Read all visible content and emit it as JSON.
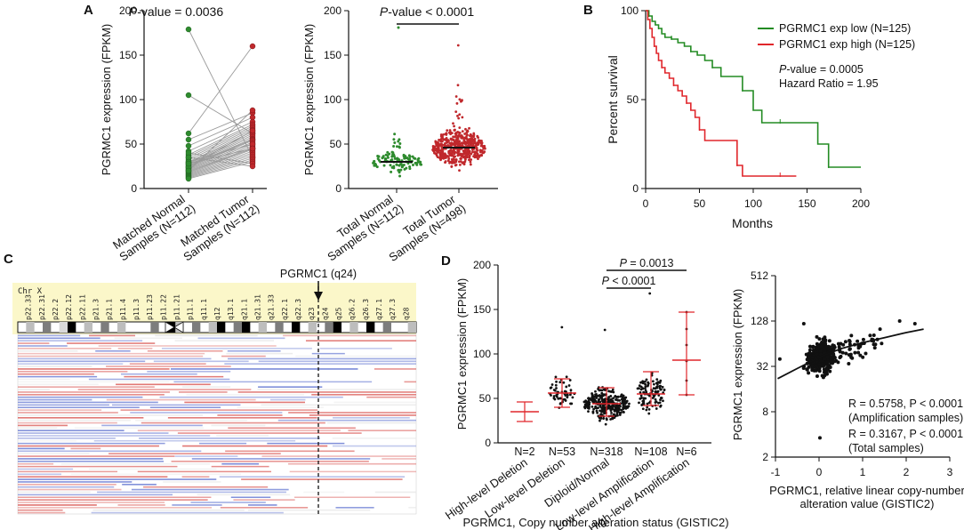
{
  "figure": {
    "panel_letters": [
      "A",
      "B",
      "C",
      "D"
    ]
  },
  "chart_data": [
    {
      "id": "A1",
      "type": "scatter",
      "subtype": "paired-dot-plot",
      "title_prefix": "P",
      "title_suffix": "-value = 0.0036",
      "ylabel": "PGRMC1 expression (FPKM)",
      "ylim": [
        0,
        200
      ],
      "yticks": [
        0,
        50,
        100,
        150,
        200
      ],
      "categories": [
        "Matched Normal Samples (N=112)",
        "Matched Tumor Samples (N=112)"
      ],
      "category_lines": [
        [
          "Matched Normal",
          "Samples (N=112)"
        ],
        [
          "Matched Tumor",
          "Samples (N=112)"
        ]
      ],
      "colors": [
        "#2e8b2e",
        "#c0282c"
      ],
      "pairs": [
        [
          179,
          35
        ],
        [
          105,
          62
        ],
        [
          62,
          160
        ],
        [
          55,
          85
        ],
        [
          48,
          80
        ],
        [
          42,
          75
        ],
        [
          38,
          72
        ],
        [
          36,
          70
        ],
        [
          34,
          68
        ],
        [
          32,
          66
        ],
        [
          30,
          64
        ],
        [
          29,
          62
        ],
        [
          28,
          60
        ],
        [
          27,
          58
        ],
        [
          26,
          56
        ],
        [
          25,
          55
        ],
        [
          24,
          54
        ],
        [
          23,
          52
        ],
        [
          22,
          50
        ],
        [
          21,
          48
        ],
        [
          20,
          46
        ],
        [
          19,
          45
        ],
        [
          18,
          44
        ],
        [
          17,
          42
        ],
        [
          16,
          40
        ],
        [
          15,
          38
        ],
        [
          14,
          36
        ],
        [
          13,
          34
        ],
        [
          12,
          32
        ],
        [
          11,
          30
        ],
        [
          40,
          28
        ],
        [
          35,
          25
        ],
        [
          30,
          50
        ],
        [
          24,
          65
        ],
        [
          20,
          88
        ],
        [
          28,
          45
        ]
      ]
    },
    {
      "id": "A2",
      "type": "scatter",
      "subtype": "dot-plot",
      "title_prefix": "P",
      "title_suffix": "-value < 0.0001",
      "ylabel": "PGRMC1 expression (FPKM)",
      "ylim": [
        0,
        200
      ],
      "yticks": [
        0,
        50,
        100,
        150,
        200
      ],
      "series": [
        {
          "name": "Total Normal Samples (N=112)",
          "lines": [
            "Total Normal",
            "Samples (N=112)"
          ],
          "n": 112,
          "median": 30,
          "color": "#2e8b2e",
          "max": 181
        },
        {
          "name": "Total Tumor Samples (N=498)",
          "lines": [
            "Total Tumor",
            "Samples (N=498)"
          ],
          "n": 498,
          "median": 46,
          "color": "#c0282c",
          "max": 161
        }
      ]
    },
    {
      "id": "B",
      "type": "line",
      "subtype": "kaplan-meier",
      "xlabel": "Months",
      "ylabel": "Percent survival",
      "xlim": [
        0,
        200
      ],
      "ylim": [
        0,
        100
      ],
      "xticks": [
        0,
        50,
        100,
        150,
        200
      ],
      "yticks": [
        0,
        50,
        100
      ],
      "series": [
        {
          "name": "PGRMC1 exp low (N=125)",
          "color": "#238b23",
          "x": [
            0,
            3,
            6,
            9,
            12,
            15,
            18,
            24,
            30,
            36,
            42,
            48,
            55,
            62,
            70,
            85,
            90,
            100,
            108,
            125,
            140,
            160,
            170,
            200
          ],
          "y": [
            100,
            97,
            94,
            92,
            90,
            87,
            85,
            84,
            82,
            80,
            77,
            75,
            72,
            68,
            63,
            63,
            55,
            44,
            37,
            37,
            37,
            25,
            12,
            12
          ]
        },
        {
          "name": "PGRMC1 exp high (N=125)",
          "color": "#e0262b",
          "x": [
            0,
            2,
            4,
            6,
            8,
            10,
            12,
            15,
            18,
            22,
            26,
            30,
            34,
            38,
            42,
            46,
            50,
            55,
            70,
            85,
            90,
            110,
            125,
            140
          ],
          "y": [
            100,
            95,
            90,
            85,
            80,
            76,
            72,
            68,
            65,
            62,
            58,
            55,
            52,
            48,
            44,
            40,
            33,
            27,
            27,
            13,
            7,
            7,
            7,
            7
          ]
        }
      ],
      "annotations": {
        "pvalue_prefix": "P",
        "pvalue_suffix": "-value = 0.0005",
        "hazard_ratio": "Hazard Ratio = 1.95"
      }
    },
    {
      "id": "C",
      "type": "heatmap",
      "subtype": "copy-number-ideogram",
      "chromosome_label": "Chr X",
      "marker_label": "PGRMC1 (q24)",
      "bands": [
        "p22.33",
        "p22.31",
        "p22.2",
        "p22.12",
        "p22.11",
        "p21.3",
        "p21.1",
        "p11.4",
        "p11.3",
        "p11.23",
        "p11.22",
        "p11.21",
        "p11.1",
        "q11.1",
        "q12",
        "q13.1",
        "q21.1",
        "q21.31",
        "q21.33",
        "q22.1",
        "q22.3",
        "q23",
        "q24",
        "q25",
        "q26.2",
        "q26.3",
        "q27.1",
        "q27.3",
        "q28"
      ],
      "colors": {
        "gain": "#d9534f",
        "loss": "#5b6fcf",
        "header_bg": "#fbf7c9"
      }
    },
    {
      "id": "D1",
      "type": "scatter",
      "subtype": "dot-plot",
      "ylabel": "PGRMC1 expression (FPKM)",
      "xlabel": "PGRMC1, Copy number alteration status (GISTIC2)",
      "ylim": [
        0,
        200
      ],
      "yticks": [
        0,
        50,
        100,
        150,
        200
      ],
      "categories": [
        "High-level Deletion",
        "Low-level Deletion",
        "Diploid/Normal",
        "Low-level Amplification",
        "High-level Amplification"
      ],
      "n_labels": [
        "N=2",
        "N=53",
        "N=318",
        "N=108",
        "N=6"
      ],
      "medians": [
        35,
        56,
        44,
        55,
        93
      ],
      "sd_low": [
        24,
        40,
        30,
        42,
        54
      ],
      "sd_high": [
        46,
        72,
        62,
        80,
        147
      ],
      "brackets": [
        {
          "from": 2,
          "to": 3,
          "label_prefix": "P",
          "label_suffix": " < 0.0001"
        },
        {
          "from": 2,
          "to": 4,
          "label_prefix": "P",
          "label_suffix": " = 0.0013"
        }
      ]
    },
    {
      "id": "D2",
      "type": "scatter",
      "ylabel": "PGRMC1 expression (FPKM)",
      "xlabel_lines": [
        "PGRMC1, relative linear copy-number",
        "alteration value (GISTIC2)"
      ],
      "xlim": [
        -1,
        3
      ],
      "ylim_log2": [
        2,
        512
      ],
      "xticks": [
        -1,
        0,
        1,
        2,
        3
      ],
      "yticks": [
        2,
        8,
        32,
        128,
        512
      ],
      "stats": [
        {
          "line1": "R = 0.5758, P < 0.0001",
          "line2": "(Amplification samples)"
        },
        {
          "line1": "R = 0.3167, P < 0.0001",
          "line2": "(Total samples)"
        }
      ],
      "fit_curve": {
        "x": [
          -0.95,
          -0.5,
          0,
          0.5,
          1,
          1.5,
          2,
          2.4
        ],
        "y": [
          22,
          30,
          42,
          55,
          66,
          77,
          90,
          100
        ]
      }
    }
  ]
}
